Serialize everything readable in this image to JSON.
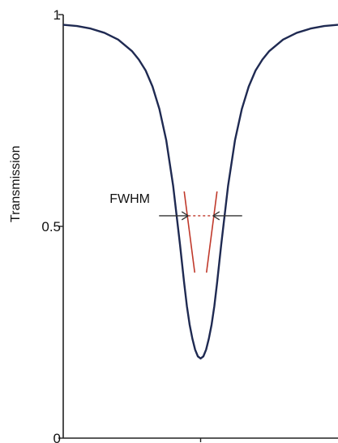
{
  "chart_data": {
    "type": "line",
    "title": "",
    "xlabel": "",
    "ylabel": "Transmission",
    "ylim": [
      0,
      1
    ],
    "yticks": [
      {
        "value": 0,
        "label": "0"
      },
      {
        "value": 0.5,
        "label": "0.5"
      },
      {
        "value": 1,
        "label": "1"
      }
    ],
    "xlim": [
      -1,
      1
    ],
    "xticks": [
      0
    ],
    "grid": false,
    "legend": "none",
    "series": [
      {
        "color": "#1f2a52",
        "x": [
          -1,
          -0.9,
          -0.8,
          -0.7,
          -0.6,
          -0.5,
          -0.45,
          -0.4,
          -0.35,
          -0.3,
          -0.25,
          -0.2,
          -0.15,
          -0.12,
          -0.1,
          -0.08,
          -0.06,
          -0.04,
          -0.02,
          0,
          0.02,
          0.04,
          0.06,
          0.08,
          0.1,
          0.12,
          0.15,
          0.2,
          0.25,
          0.3,
          0.35,
          0.4,
          0.45,
          0.5,
          0.6,
          0.7,
          0.8,
          0.9,
          1
        ],
        "y": [
          0.976,
          0.973,
          0.967,
          0.957,
          0.941,
          0.914,
          0.894,
          0.868,
          0.83,
          0.777,
          0.703,
          0.596,
          0.457,
          0.367,
          0.312,
          0.268,
          0.235,
          0.209,
          0.193,
          0.188,
          0.193,
          0.209,
          0.235,
          0.268,
          0.312,
          0.367,
          0.457,
          0.596,
          0.703,
          0.777,
          0.83,
          0.868,
          0.894,
          0.914,
          0.941,
          0.957,
          0.967,
          0.973,
          0.976
        ]
      }
    ],
    "annotations": [
      {
        "text": "FWHM",
        "y": 0.525,
        "x_from": -0.09,
        "x_to": 0.09,
        "color": "#c0392b"
      }
    ]
  }
}
